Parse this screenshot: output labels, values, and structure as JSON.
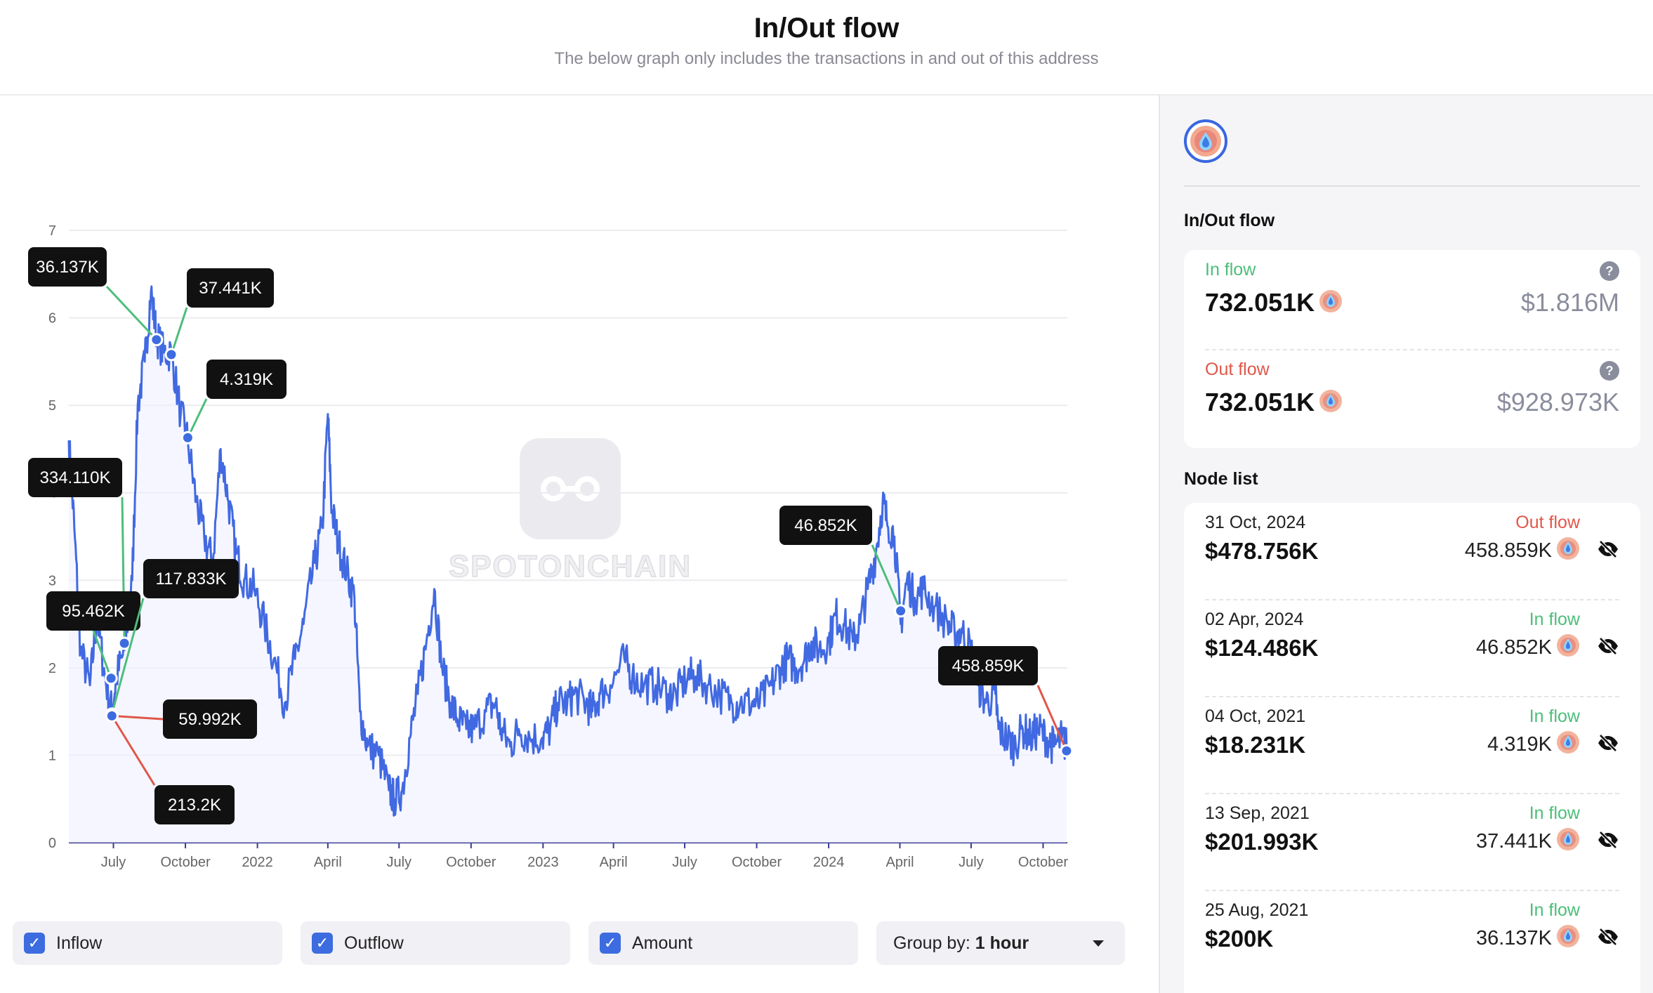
{
  "header": {
    "title": "In/Out flow",
    "subtitle": "The below graph only includes the transactions in and out of this address"
  },
  "watermark": {
    "text": "SPOTONCHAIN"
  },
  "controls": {
    "inflow": {
      "label": "Inflow",
      "checked": true
    },
    "outflow": {
      "label": "Outflow",
      "checked": true
    },
    "amount": {
      "label": "Amount",
      "checked": true
    },
    "group_by": {
      "label": "Group by: ",
      "value": "1 hour"
    }
  },
  "sidebar": {
    "flow_title": "In/Out flow",
    "in_flow": {
      "label": "In flow",
      "amount": "732.051K",
      "usd": "$1.816M"
    },
    "out_flow": {
      "label": "Out flow",
      "amount": "732.051K",
      "usd": "$928.973K"
    },
    "node_list_title": "Node list",
    "nodes": [
      {
        "date": "31 Oct, 2024",
        "usd": "$478.756K",
        "direction": "Out flow",
        "amount": "458.859K"
      },
      {
        "date": "02 Apr, 2024",
        "usd": "$124.486K",
        "direction": "In flow",
        "amount": "46.852K"
      },
      {
        "date": "04 Oct, 2021",
        "usd": "$18.231K",
        "direction": "In flow",
        "amount": "4.319K"
      },
      {
        "date": "13 Sep, 2021",
        "usd": "$201.993K",
        "direction": "In flow",
        "amount": "37.441K"
      },
      {
        "date": "25 Aug, 2021",
        "usd": "$200K",
        "direction": "In flow",
        "amount": "36.137K"
      }
    ]
  },
  "colors": {
    "line": "#4169e1",
    "inflow": "#4cbe7a",
    "outflow": "#e0574a",
    "accent": "#3d6ce0"
  },
  "chart_data": {
    "type": "line",
    "ylim": [
      0,
      7
    ],
    "yticks": [
      "0",
      "1",
      "2",
      "3",
      "4",
      "5",
      "6",
      "7"
    ],
    "xlim": [
      "2021-05-05",
      "2024-11-01"
    ],
    "xticks": [
      {
        "date": "2021-07-01",
        "label": "July"
      },
      {
        "date": "2021-10-01",
        "label": "October"
      },
      {
        "date": "2022-01-01",
        "label": "2022"
      },
      {
        "date": "2022-04-01",
        "label": "April"
      },
      {
        "date": "2022-07-01",
        "label": "July"
      },
      {
        "date": "2022-10-01",
        "label": "October"
      },
      {
        "date": "2023-01-01",
        "label": "2023"
      },
      {
        "date": "2023-04-01",
        "label": "April"
      },
      {
        "date": "2023-07-01",
        "label": "July"
      },
      {
        "date": "2023-10-01",
        "label": "October"
      },
      {
        "date": "2024-01-01",
        "label": "2024"
      },
      {
        "date": "2024-04-01",
        "label": "April"
      },
      {
        "date": "2024-07-01",
        "label": "July"
      },
      {
        "date": "2024-10-01",
        "label": "October"
      }
    ],
    "series": [
      {
        "values": [
          [
            "2021-05-05",
            4.6
          ],
          [
            "2021-05-12",
            3.6
          ],
          [
            "2021-05-20",
            2.2
          ],
          [
            "2021-06-01",
            1.8
          ],
          [
            "2021-06-10",
            2.6
          ],
          [
            "2021-06-20",
            1.9
          ],
          [
            "2021-06-29",
            1.5
          ],
          [
            "2021-07-05",
            1.9
          ],
          [
            "2021-07-15",
            2.2
          ],
          [
            "2021-07-25",
            3.0
          ],
          [
            "2021-08-01",
            5.0
          ],
          [
            "2021-08-10",
            5.5
          ],
          [
            "2021-08-18",
            6.3
          ],
          [
            "2021-08-25",
            5.8
          ],
          [
            "2021-09-03",
            5.6
          ],
          [
            "2021-09-13",
            5.6
          ],
          [
            "2021-09-25",
            4.9
          ],
          [
            "2021-10-04",
            4.6
          ],
          [
            "2021-10-15",
            3.9
          ],
          [
            "2021-10-25",
            3.5
          ],
          [
            "2021-11-05",
            3.2
          ],
          [
            "2021-11-15",
            4.5
          ],
          [
            "2021-11-25",
            3.9
          ],
          [
            "2021-12-05",
            3.3
          ],
          [
            "2021-12-15",
            3.0
          ],
          [
            "2021-12-28",
            2.9
          ],
          [
            "2022-01-10",
            2.5
          ],
          [
            "2022-01-22",
            2.1
          ],
          [
            "2022-02-05",
            1.6
          ],
          [
            "2022-02-18",
            2.1
          ],
          [
            "2022-03-01",
            2.5
          ],
          [
            "2022-03-15",
            3.2
          ],
          [
            "2022-03-25",
            3.6
          ],
          [
            "2022-04-01",
            4.9
          ],
          [
            "2022-04-06",
            3.8
          ],
          [
            "2022-04-15",
            3.4
          ],
          [
            "2022-04-25",
            3.1
          ],
          [
            "2022-05-05",
            2.8
          ],
          [
            "2022-05-12",
            1.5
          ],
          [
            "2022-05-22",
            1.1
          ],
          [
            "2022-06-05",
            1.0
          ],
          [
            "2022-06-18",
            0.6
          ],
          [
            "2022-06-25",
            0.5
          ],
          [
            "2022-07-05",
            0.6
          ],
          [
            "2022-07-15",
            1.2
          ],
          [
            "2022-07-25",
            1.7
          ],
          [
            "2022-08-05",
            2.3
          ],
          [
            "2022-08-15",
            2.9
          ],
          [
            "2022-08-25",
            2.0
          ],
          [
            "2022-09-05",
            1.6
          ],
          [
            "2022-09-15",
            1.4
          ],
          [
            "2022-09-25",
            1.3
          ],
          [
            "2022-10-05",
            1.3
          ],
          [
            "2022-10-20",
            1.5
          ],
          [
            "2022-11-01",
            1.6
          ],
          [
            "2022-11-08",
            1.3
          ],
          [
            "2022-11-20",
            1.1
          ],
          [
            "2022-12-01",
            1.3
          ],
          [
            "2022-12-15",
            1.2
          ],
          [
            "2022-12-31",
            1.2
          ],
          [
            "2023-01-10",
            1.3
          ],
          [
            "2023-01-20",
            1.6
          ],
          [
            "2023-02-01",
            1.6
          ],
          [
            "2023-02-10",
            1.7
          ],
          [
            "2023-02-25",
            1.6
          ],
          [
            "2023-03-05",
            1.5
          ],
          [
            "2023-03-15",
            1.7
          ],
          [
            "2023-03-28",
            1.8
          ],
          [
            "2023-04-15",
            2.1
          ],
          [
            "2023-04-25",
            1.9
          ],
          [
            "2023-05-10",
            1.8
          ],
          [
            "2023-05-25",
            1.8
          ],
          [
            "2023-06-10",
            1.7
          ],
          [
            "2023-06-20",
            1.7
          ],
          [
            "2023-07-05",
            1.9
          ],
          [
            "2023-07-15",
            1.9
          ],
          [
            "2023-07-30",
            1.8
          ],
          [
            "2023-08-15",
            1.7
          ],
          [
            "2023-08-30",
            1.6
          ],
          [
            "2023-09-10",
            1.6
          ],
          [
            "2023-09-25",
            1.6
          ],
          [
            "2023-10-05",
            1.6
          ],
          [
            "2023-10-20",
            1.8
          ],
          [
            "2023-11-01",
            2.0
          ],
          [
            "2023-11-10",
            2.1
          ],
          [
            "2023-11-20",
            2.0
          ],
          [
            "2023-12-01",
            2.1
          ],
          [
            "2023-12-10",
            2.3
          ],
          [
            "2023-12-20",
            2.2
          ],
          [
            "2024-01-01",
            2.3
          ],
          [
            "2024-01-10",
            2.6
          ],
          [
            "2024-01-20",
            2.5
          ],
          [
            "2024-02-01",
            2.3
          ],
          [
            "2024-02-10",
            2.5
          ],
          [
            "2024-02-20",
            2.9
          ],
          [
            "2024-03-01",
            3.3
          ],
          [
            "2024-03-10",
            3.9
          ],
          [
            "2024-03-15",
            3.7
          ],
          [
            "2024-03-25",
            3.5
          ],
          [
            "2024-04-02",
            2.5
          ],
          [
            "2024-04-10",
            3.0
          ],
          [
            "2024-04-20",
            2.8
          ],
          [
            "2024-05-01",
            2.9
          ],
          [
            "2024-05-15",
            2.7
          ],
          [
            "2024-06-01",
            2.5
          ],
          [
            "2024-06-10",
            2.4
          ],
          [
            "2024-06-20",
            2.4
          ],
          [
            "2024-07-01",
            2.2
          ],
          [
            "2024-07-10",
            1.8
          ],
          [
            "2024-07-20",
            1.6
          ],
          [
            "2024-08-01",
            1.7
          ],
          [
            "2024-08-05",
            1.3
          ],
          [
            "2024-08-15",
            1.2
          ],
          [
            "2024-08-25",
            1.1
          ],
          [
            "2024-09-05",
            1.3
          ],
          [
            "2024-09-15",
            1.2
          ],
          [
            "2024-09-25",
            1.3
          ],
          [
            "2024-10-05",
            1.2
          ],
          [
            "2024-10-15",
            1.1
          ],
          [
            "2024-10-25",
            1.2
          ],
          [
            "2024-10-31",
            1.1
          ]
        ]
      }
    ],
    "annotations": [
      {
        "label": "36.137K",
        "date": "2021-08-25",
        "y": 5.75,
        "type": "in"
      },
      {
        "label": "37.441K",
        "date": "2021-09-13",
        "y": 5.58,
        "type": "in"
      },
      {
        "label": "4.319K",
        "date": "2021-10-04",
        "y": 4.63,
        "type": "in"
      },
      {
        "label": "334.110K",
        "date": "2021-07-15",
        "y": 2.28,
        "type": "in"
      },
      {
        "label": "95.462K",
        "date": "2021-06-28",
        "y": 1.88,
        "type": "in"
      },
      {
        "label": "117.833K",
        "date": "2021-06-29",
        "y": 1.47,
        "type": "in"
      },
      {
        "label": "59.992K",
        "date": "2021-06-29",
        "y": 1.45,
        "type": "out"
      },
      {
        "label": "213.2K",
        "date": "2021-06-29",
        "y": 1.45,
        "type": "out"
      },
      {
        "label": "46.852K",
        "date": "2024-04-02",
        "y": 2.65,
        "type": "in"
      },
      {
        "label": "458.859K",
        "date": "2024-10-31",
        "y": 1.05,
        "type": "out"
      }
    ]
  }
}
